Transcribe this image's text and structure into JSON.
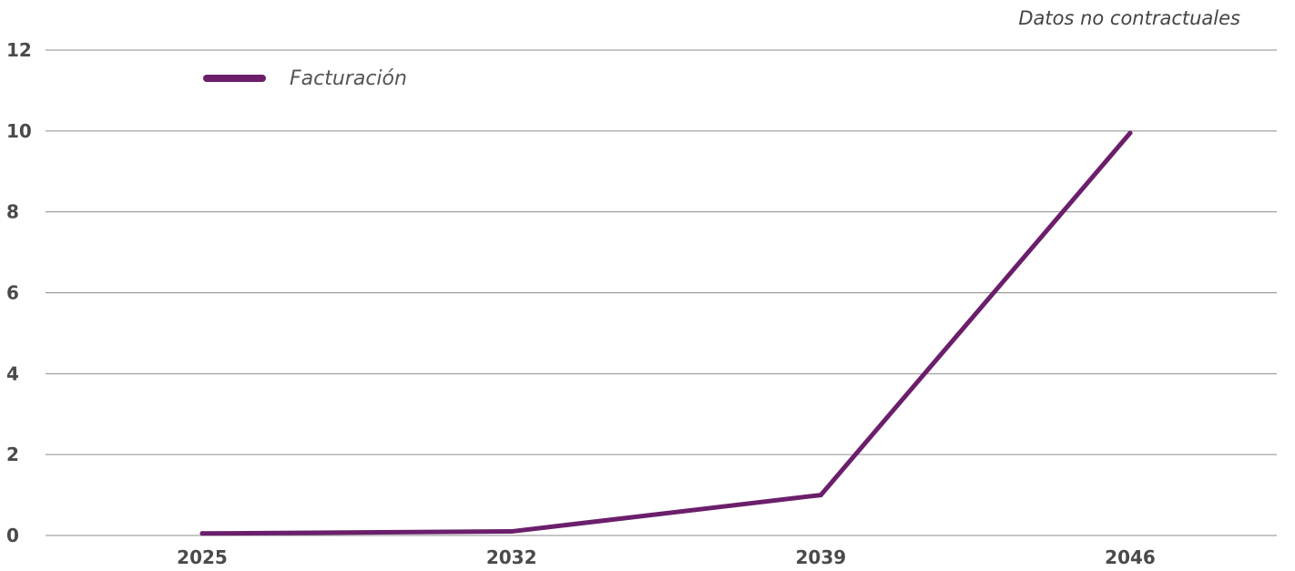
{
  "note": "Datos no contractuales",
  "chart_data": {
    "type": "line",
    "title": "",
    "xlabel": "",
    "ylabel": "",
    "categories": [
      "2025",
      "2032",
      "2039",
      "2046"
    ],
    "series": [
      {
        "name": "Facturación",
        "values": [
          0.05,
          0.1,
          1.0,
          9.95
        ],
        "color": "#6b1f6b"
      }
    ],
    "ylim": [
      0,
      12
    ],
    "yticks": [
      0,
      2,
      4,
      6,
      8,
      10,
      12
    ],
    "grid": true,
    "legend_position": "top-left"
  }
}
